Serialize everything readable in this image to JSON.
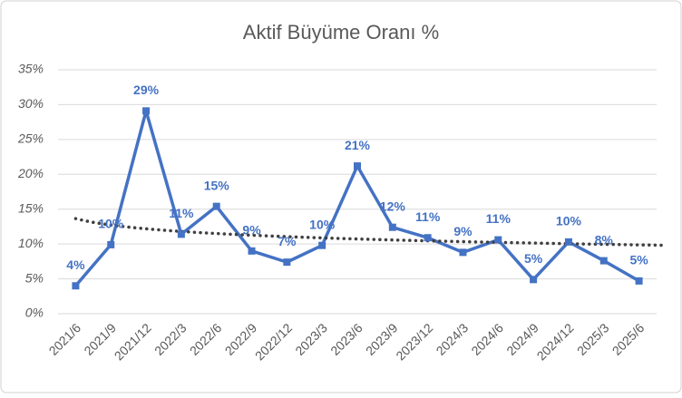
{
  "chart_data": {
    "type": "line",
    "title": "Aktif Büyüme Oranı %",
    "categories": [
      "2021/6",
      "2021/9",
      "2021/12",
      "2022/3",
      "2022/6",
      "2022/9",
      "2022/12",
      "2023/3",
      "2023/6",
      "2023/9",
      "2023/12",
      "2024/3",
      "2024/6",
      "2024/9",
      "2024/12",
      "2025/3",
      "2025/6"
    ],
    "series": [
      {
        "name": "Aktif Büyüme Oranı",
        "color": "#4472c4",
        "values": [
          4.0,
          9.9,
          29.1,
          11.4,
          15.4,
          9.0,
          7.4,
          9.8,
          21.2,
          12.4,
          10.9,
          8.8,
          10.6,
          4.9,
          10.3,
          7.6,
          4.7
        ],
        "value_labels": [
          "4%",
          "10%",
          "29%",
          "11%",
          "15%",
          "9%",
          "7%",
          "10%",
          "21%",
          "12%",
          "11%",
          "9%",
          "11%",
          "5%",
          "10%",
          "8%",
          "5%"
        ]
      }
    ],
    "ylim": [
      0,
      35
    ],
    "yticks": [
      {
        "value": 0,
        "label": "0%"
      },
      {
        "value": 5,
        "label": "5%"
      },
      {
        "value": 10,
        "label": "10%"
      },
      {
        "value": 15,
        "label": "15%"
      },
      {
        "value": 20,
        "label": "20%"
      },
      {
        "value": 25,
        "label": "25%"
      },
      {
        "value": 30,
        "label": "30%"
      },
      {
        "value": 35,
        "label": "35%"
      }
    ],
    "grid": true,
    "trendline": "logarithmic",
    "trendline_color": "#404040"
  }
}
